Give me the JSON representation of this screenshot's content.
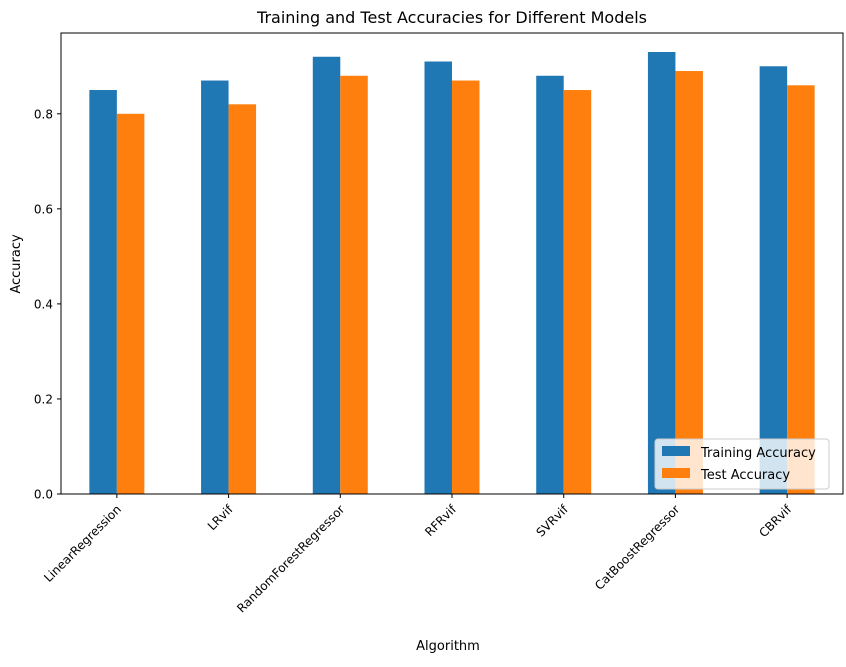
{
  "chart_data": {
    "type": "bar",
    "title": "Training and Test Accuracies for Different Models",
    "xlabel": "Algorithm",
    "ylabel": "Accuracy",
    "categories": [
      "LinearRegression",
      "LRvif",
      "RandomForestRegressor",
      "RFRvif",
      "SVRvif",
      "CatBoostRegressor",
      "CBRvif"
    ],
    "series": [
      {
        "name": "Training Accuracy",
        "color": "#1f77b4",
        "values": [
          0.85,
          0.87,
          0.92,
          0.91,
          0.88,
          0.93,
          0.9
        ]
      },
      {
        "name": "Test Accuracy",
        "color": "#ff7f0e",
        "values": [
          0.8,
          0.82,
          0.88,
          0.87,
          0.85,
          0.89,
          0.86
        ]
      }
    ],
    "ylim": [
      0,
      0.97
    ],
    "yticks": [
      "0.0",
      "0.2",
      "0.4",
      "0.6",
      "0.8"
    ],
    "ytick_values": [
      0.0,
      0.2,
      0.4,
      0.6,
      0.8
    ],
    "xtick_rotation": 45,
    "grid": false,
    "legend_position": "lower-right"
  }
}
